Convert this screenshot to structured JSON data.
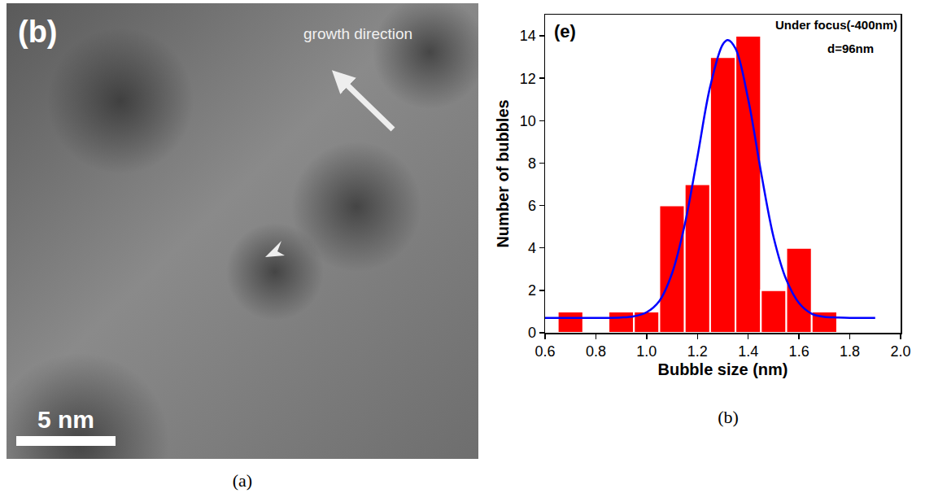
{
  "image_panel": {
    "caption": "(a)",
    "letter": "(b)",
    "arrow_label": "growth direction",
    "scale_bar": "5 nm"
  },
  "chart_data": {
    "type": "histogram",
    "caption": "(b)",
    "x_label": "Bubble size (nm)",
    "y_label": "Number of bubbles",
    "annotations": [
      "(e)",
      "Under focus(-400nm)",
      "d=96nm"
    ],
    "bins": [
      0.65,
      0.75,
      0.85,
      0.95,
      1.05,
      1.15,
      1.25,
      1.35,
      1.45,
      1.55,
      1.65,
      1.75
    ],
    "values": [
      1,
      0,
      1,
      1,
      6,
      7,
      13,
      14,
      2,
      4,
      1
    ],
    "color": "#ff0000",
    "fit": {
      "type": "line",
      "color": "#0000ff",
      "line_style": "solid",
      "x": [
        0.6,
        0.8,
        0.9,
        0.95,
        1.0,
        1.05,
        1.1,
        1.15,
        1.2,
        1.25,
        1.3,
        1.32,
        1.35,
        1.4,
        1.45,
        1.5,
        1.55,
        1.6,
        1.65,
        1.7,
        1.75,
        1.8,
        1.9
      ],
      "y": [
        0.7,
        0.7,
        0.72,
        0.78,
        0.97,
        1.5,
        2.8,
        5.1,
        8.3,
        11.6,
        13.6,
        13.8,
        13.4,
        11.0,
        7.6,
        4.5,
        2.5,
        1.4,
        0.9,
        0.75,
        0.72,
        0.7,
        0.7
      ]
    },
    "xlim": [
      0.6,
      2.0
    ],
    "xticks": [
      {
        "value": 0.6,
        "label": "0.6"
      },
      {
        "value": 0.8,
        "label": "0.8"
      },
      {
        "value": 1.0,
        "label": "1.0"
      },
      {
        "value": 1.2,
        "label": "1.2"
      },
      {
        "value": 1.4,
        "label": "1.4"
      },
      {
        "value": 1.6,
        "label": "1.6"
      },
      {
        "value": 1.8,
        "label": "1.8"
      },
      {
        "value": 2.0,
        "label": "2.0"
      }
    ],
    "ylim": [
      0,
      15
    ],
    "yticks": [
      0,
      2,
      4,
      6,
      8,
      10,
      12,
      14
    ],
    "grid": false
  }
}
